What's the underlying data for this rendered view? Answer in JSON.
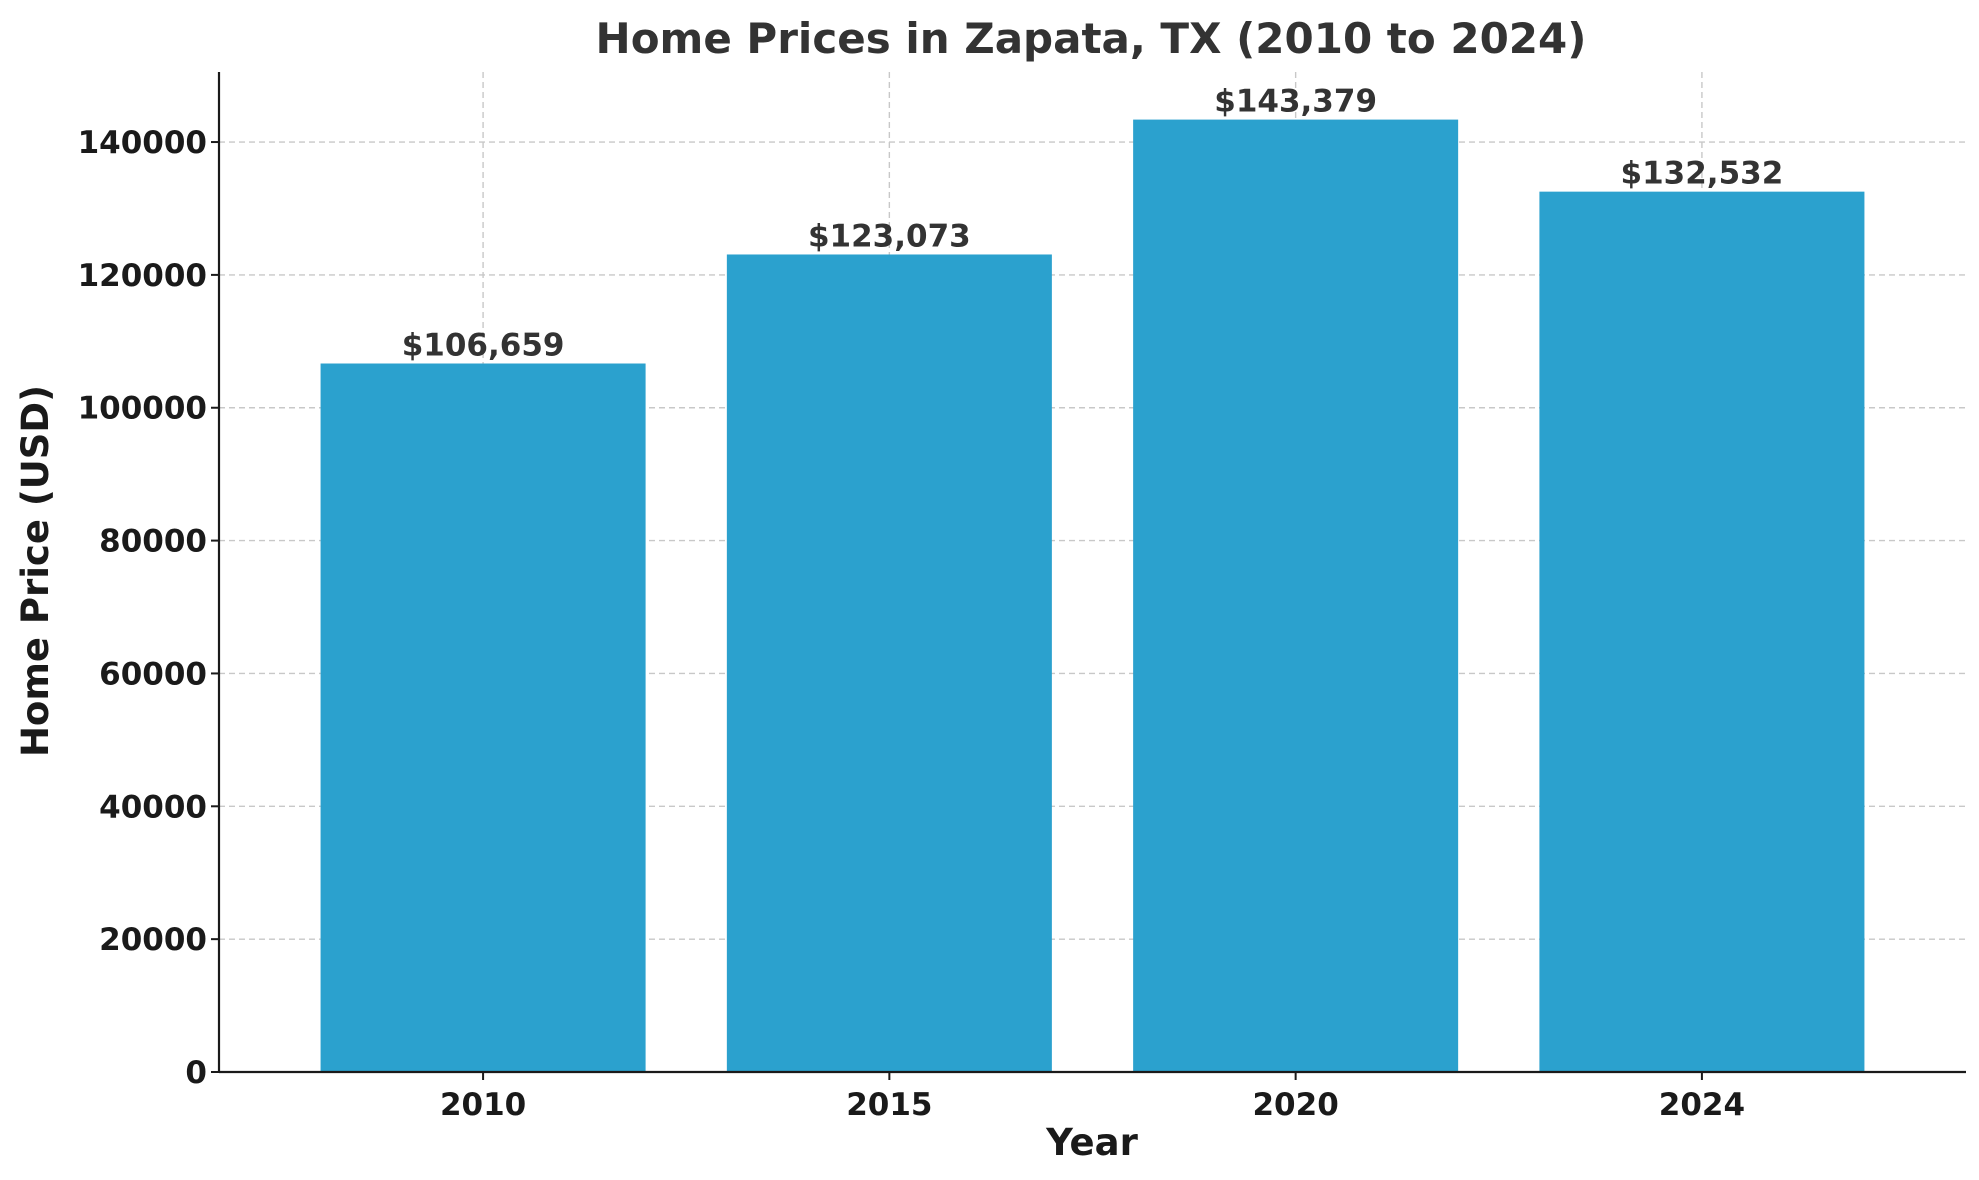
{
  "chart_data": {
    "type": "bar",
    "title": "Home Prices in Zapata, TX (2010 to 2024)",
    "xlabel": "Year",
    "ylabel": "Home Price (USD)",
    "categories": [
      "2010",
      "2015",
      "2020",
      "2024"
    ],
    "values": [
      106659,
      123073,
      143379,
      132532
    ],
    "value_labels": [
      "$106,659",
      "$123,073",
      "$143,379",
      "$132,532"
    ],
    "ylim": [
      0,
      150544
    ],
    "yticks": [
      0,
      20000,
      40000,
      60000,
      80000,
      100000,
      120000,
      140000
    ],
    "ytick_labels": [
      "0",
      "20000",
      "40000",
      "60000",
      "80000",
      "100000",
      "120000",
      "140000"
    ],
    "grid": true,
    "bar_color": "#2ba1ce"
  }
}
